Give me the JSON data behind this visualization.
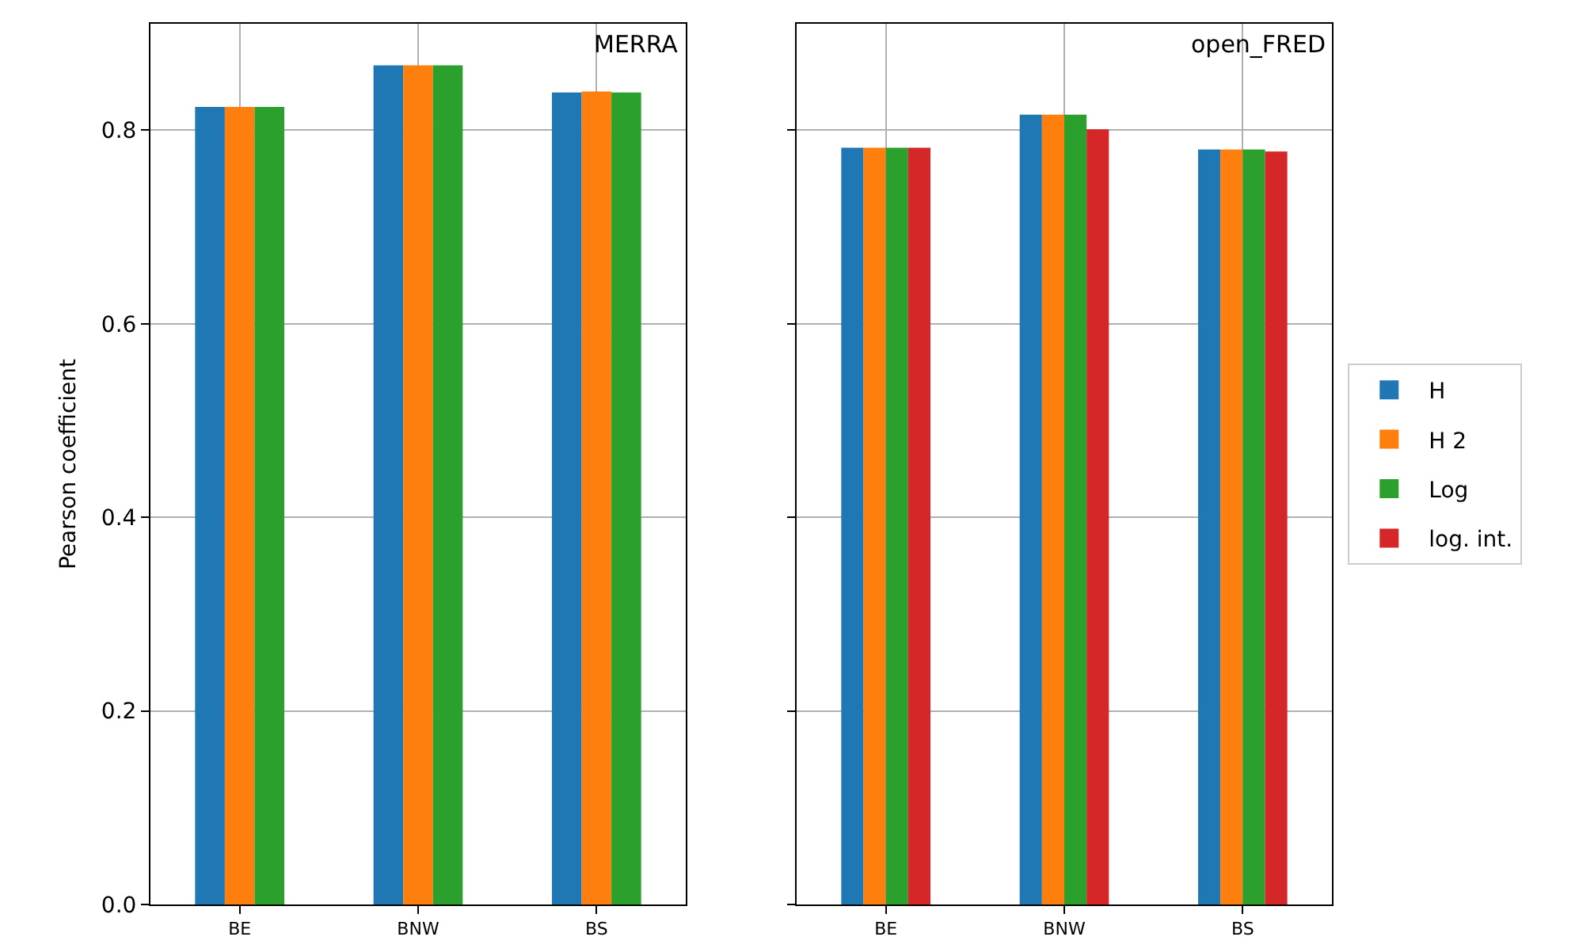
{
  "chart_data": [
    {
      "type": "bar",
      "title": "MERRA",
      "ylabel": "Pearson coefficient",
      "categories": [
        "BE",
        "BNW",
        "BS"
      ],
      "series": [
        {
          "color": "#1f77b4",
          "values": [
            0.824,
            0.867,
            0.839
          ]
        },
        {
          "color": "#ff7f0e",
          "values": [
            0.824,
            0.867,
            0.84
          ]
        },
        {
          "color": "#2ca02c",
          "values": [
            0.824,
            0.867,
            0.839
          ]
        }
      ],
      "ylim": [
        0,
        0.91
      ],
      "yticks": [
        {
          "value": 0,
          "label": "0.0"
        },
        0.2,
        0.4,
        0.6,
        0.8
      ],
      "grid": true
    },
    {
      "type": "bar",
      "title": "open_FRED",
      "categories": [
        "BE",
        "BNW",
        "BS"
      ],
      "series": [
        {
          "name": "H",
          "color": "#1f77b4",
          "values": [
            0.782,
            0.816,
            0.78
          ]
        },
        {
          "name": "H 2",
          "color": "#ff7f0e",
          "values": [
            0.782,
            0.816,
            0.78
          ]
        },
        {
          "name": "Log",
          "color": "#2ca02c",
          "values": [
            0.782,
            0.816,
            0.78
          ]
        },
        {
          "name": "log. int.",
          "color": "#d62728",
          "values": [
            0.782,
            0.801,
            0.778
          ]
        }
      ],
      "ylim": [
        0,
        0.91
      ],
      "yticks": [
        0,
        0.2,
        0.4,
        0.6,
        0.8
      ],
      "grid": true,
      "legend": "right",
      "tick_labels": "x"
    }
  ]
}
